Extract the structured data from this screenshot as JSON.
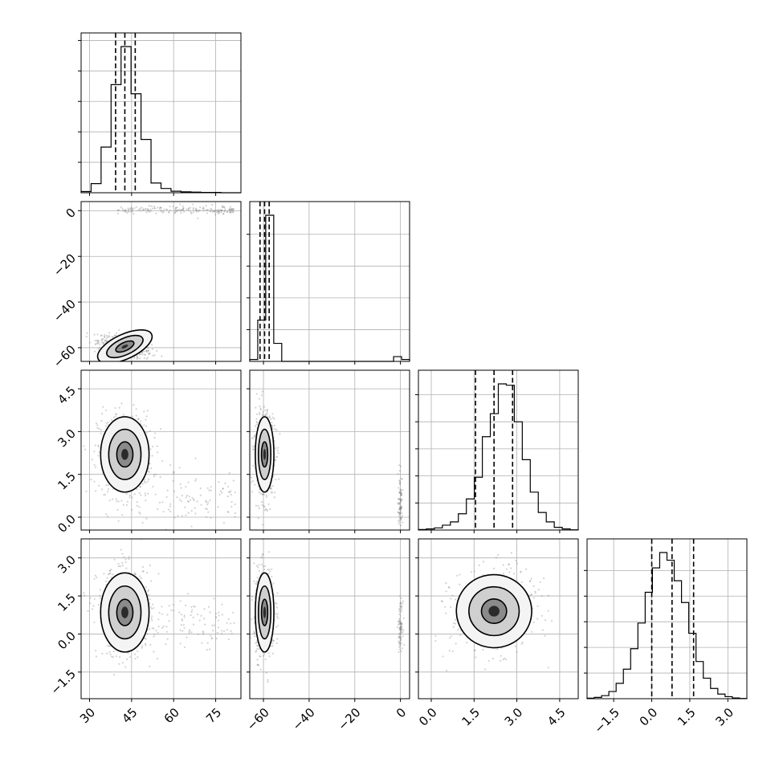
{
  "chart_data": {
    "type": "corner",
    "grid": true,
    "quantile_lines": "dashed",
    "params": [
      {
        "range": [
          27,
          84
        ],
        "ticks": [
          30,
          45,
          60,
          75
        ],
        "tick_labels": [
          "30",
          "45",
          "60",
          "75"
        ],
        "quantiles": [
          39.3,
          42.6,
          46.3
        ],
        "hist_counts": [
          4,
          30,
          150,
          355,
          480,
          325,
          175,
          32,
          14,
          5,
          3,
          2,
          1,
          1,
          0,
          0
        ]
      },
      {
        "range": [
          -66,
          4
        ],
        "ticks": [
          -60,
          -40,
          -20,
          0
        ],
        "tick_labels": [
          "−60",
          "−40",
          "−20",
          "0"
        ],
        "quantiles": [
          -61.5,
          -59.5,
          -57.5
        ],
        "hist_counts": [
          18,
          390,
          1380,
          170,
          0,
          0,
          0,
          0,
          0,
          0,
          0,
          0,
          0,
          0,
          0,
          0,
          0,
          0,
          45,
          18
        ]
      },
      {
        "range": [
          -0.45,
          5.15
        ],
        "ticks": [
          0.0,
          1.5,
          3.0,
          4.5
        ],
        "tick_labels": [
          "0.0",
          "1.5",
          "3.0",
          "4.5"
        ],
        "quantiles": [
          1.55,
          2.2,
          2.85
        ],
        "hist_counts": [
          2,
          4,
          8,
          18,
          30,
          60,
          115,
          195,
          345,
          430,
          540,
          535,
          400,
          260,
          140,
          65,
          30,
          10,
          4,
          1
        ]
      },
      {
        "range": [
          -2.55,
          3.75
        ],
        "ticks": [
          -1.5,
          0.0,
          1.5,
          3.0
        ],
        "tick_labels": [
          "−1.5",
          "0.0",
          "1.5",
          "3.0"
        ],
        "quantiles": [
          0.0,
          0.8,
          1.65
        ],
        "hist_counts": [
          2,
          5,
          12,
          28,
          60,
          115,
          195,
          295,
          415,
          510,
          570,
          540,
          460,
          375,
          255,
          145,
          80,
          40,
          18,
          8,
          3,
          1
        ]
      }
    ]
  }
}
